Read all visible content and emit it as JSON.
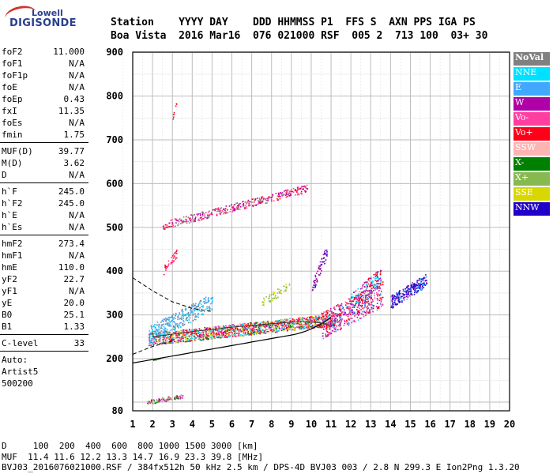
{
  "logo": {
    "line1": "Lowell",
    "line2": "DIGISONDE"
  },
  "header": {
    "line1": "Station    YYYY DAY    DDD HHMMSS P1  FFS S  AXN PPS IGA PS",
    "line2": "Boa Vista  2016 Mar16  076 021000 RSF  005 2  713 100  03+ 30"
  },
  "params": {
    "group1": [
      {
        "k": "foF2",
        "v": "11.000"
      },
      {
        "k": "foF1",
        "v": "N/A"
      },
      {
        "k": "foF1p",
        "v": "N/A"
      },
      {
        "k": "foE",
        "v": "N/A"
      },
      {
        "k": "foEp",
        "v": "0.43"
      },
      {
        "k": "fxI",
        "v": "11.35"
      },
      {
        "k": "foEs",
        "v": "N/A"
      },
      {
        "k": "fmin",
        "v": "1.75"
      }
    ],
    "group2": [
      {
        "k": "MUF(D)",
        "v": "39.77"
      },
      {
        "k": "M(D)",
        "v": "3.62"
      },
      {
        "k": "D",
        "v": "N/A"
      }
    ],
    "group3": [
      {
        "k": "h`F",
        "v": "245.0"
      },
      {
        "k": "h`F2",
        "v": "245.0"
      },
      {
        "k": "h`E",
        "v": "N/A"
      },
      {
        "k": "h`Es",
        "v": "N/A"
      }
    ],
    "group4": [
      {
        "k": "hmF2",
        "v": "273.4"
      },
      {
        "k": "hmF1",
        "v": "N/A"
      },
      {
        "k": "hmE",
        "v": "110.0"
      },
      {
        "k": "yF2",
        "v": "22.7"
      },
      {
        "k": "yF1",
        "v": "N/A"
      },
      {
        "k": "yE",
        "v": "20.0"
      },
      {
        "k": "B0",
        "v": "25.1"
      },
      {
        "k": "B1",
        "v": "1.33"
      }
    ],
    "group5": [
      {
        "k": "C-level",
        "v": "33"
      }
    ],
    "aux": [
      "Auto:",
      "Artist5",
      "500200"
    ]
  },
  "legend": [
    {
      "label": "NoVal",
      "color": "#808080"
    },
    {
      "label": "NNE",
      "color": "#00e0ff"
    },
    {
      "label": "E",
      "color": "#40a8ff"
    },
    {
      "label": "W",
      "color": "#b000a8"
    },
    {
      "label": "Vo-",
      "color": "#ff3fa0"
    },
    {
      "label": "Vo+",
      "color": "#ff0018"
    },
    {
      "label": "SSW",
      "color": "#ffb4b4"
    },
    {
      "label": "X-",
      "color": "#008000"
    },
    {
      "label": "X+",
      "color": "#88b850"
    },
    {
      "label": "SSE",
      "color": "#d8d800"
    },
    {
      "label": "NNW",
      "color": "#2000c8"
    }
  ],
  "axes": {
    "x_ticks": [
      "1",
      "2",
      "3",
      "4",
      "5",
      "6",
      "7",
      "8",
      "9",
      "10",
      "11",
      "12",
      "13",
      "14",
      "15",
      "16",
      "17",
      "18",
      "19",
      "20"
    ],
    "y_ticks": [
      "80",
      "200",
      "300",
      "400",
      "500",
      "600",
      "700",
      "800",
      "900"
    ]
  },
  "footer": {
    "line1": "D     100  200  400  600  800 1000 1500 3000 [km]",
    "line2": "MUF  11.4 11.6 12.2 13.3 14.7 16.9 23.3 39.8 [MHz]",
    "line3": "BVJ03_2016076021000.RSF / 384fx512h 50 kHz 2.5 km / DPS-4D BVJ03 003 / 2.8 N 299.3 E Ion2Png 1.3.20"
  }
}
